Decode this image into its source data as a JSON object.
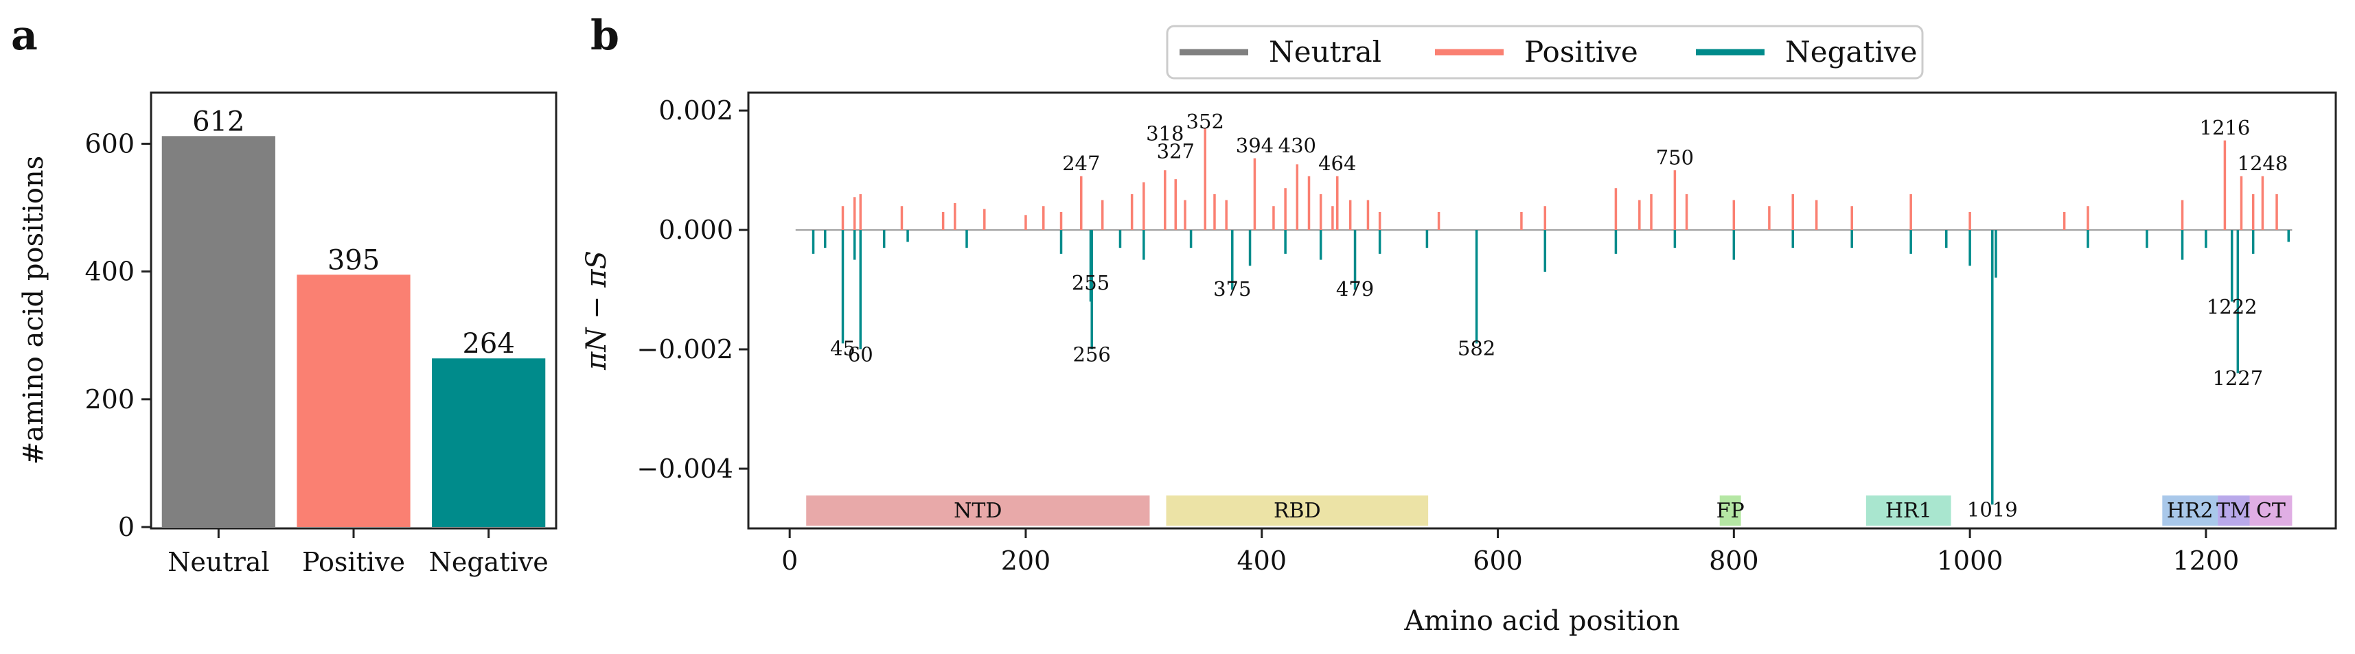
{
  "panel_a_letter": "a",
  "panel_b_letter": "b",
  "legend": [
    {
      "label": "Neutral",
      "color": "#808080"
    },
    {
      "label": "Positive",
      "color": "#fa8072"
    },
    {
      "label": "Negative",
      "color": "#008b8b"
    }
  ],
  "regions": [
    {
      "name": "NTD",
      "start": 14,
      "end": 305,
      "color": "#e8a9a9"
    },
    {
      "name": "RBD",
      "start": 319,
      "end": 541,
      "color": "#ece3a6"
    },
    {
      "name": "FP",
      "start": 788,
      "end": 806,
      "color": "#b5e7a4"
    },
    {
      "name": "HR1",
      "start": 912,
      "end": 984,
      "color": "#a9e6cf"
    },
    {
      "name": "HR2",
      "start": 1163,
      "end": 1210,
      "color": "#a9c8ea"
    },
    {
      "name": "TM",
      "start": 1210,
      "end": 1237,
      "color": "#b9a9ea"
    },
    {
      "name": "CT",
      "start": 1237,
      "end": 1273,
      "color": "#e0aee4"
    }
  ],
  "chart_data": [
    {
      "type": "bar",
      "panel": "a",
      "categories": [
        "Neutral",
        "Positive",
        "Negative"
      ],
      "values": [
        612,
        395,
        264
      ],
      "value_labels": [
        "612",
        "395",
        "264"
      ],
      "colors": [
        "#808080",
        "#fa8072",
        "#008b8b"
      ],
      "ylabel": "#amino acid positions",
      "xlabel": "",
      "ylim": [
        0,
        680
      ],
      "yticks": [
        0,
        200,
        400,
        600
      ],
      "ytick_labels": [
        "0",
        "200",
        "400",
        "600"
      ]
    },
    {
      "type": "bar",
      "panel": "b",
      "title": "",
      "xlabel": "Amino acid position",
      "ylabel": "πN − πS",
      "xlim": [
        -35,
        1310
      ],
      "ylim": [
        -0.005,
        0.0023
      ],
      "xticks": [
        0,
        200,
        400,
        600,
        800,
        1000,
        1200
      ],
      "xtick_labels": [
        "0",
        "200",
        "400",
        "600",
        "800",
        "1000",
        "1200"
      ],
      "yticks": [
        -0.004,
        -0.002,
        0,
        0.002
      ],
      "ytick_labels": [
        "−0.004",
        "−0.002",
        "0.000",
        "0.002"
      ],
      "series": [
        {
          "name": "Positive",
          "color": "#fa8072",
          "positions": [
            45,
            55,
            60,
            95,
            130,
            140,
            165,
            200,
            215,
            230,
            247,
            265,
            290,
            300,
            318,
            327,
            335,
            352,
            360,
            370,
            394,
            410,
            420,
            430,
            440,
            450,
            460,
            464,
            475,
            490,
            500,
            550,
            620,
            640,
            700,
            720,
            730,
            750,
            760,
            800,
            830,
            850,
            870,
            900,
            950,
            1000,
            1080,
            1100,
            1180,
            1216,
            1230,
            1240,
            1248,
            1260
          ],
          "values": [
            0.0004,
            0.00055,
            0.0006,
            0.0004,
            0.0003,
            0.00045,
            0.00035,
            0.00025,
            0.0004,
            0.0003,
            0.0009,
            0.0005,
            0.0006,
            0.0008,
            0.001,
            0.00085,
            0.0005,
            0.0017,
            0.0006,
            0.0005,
            0.0012,
            0.0004,
            0.0007,
            0.0011,
            0.0009,
            0.0006,
            0.0004,
            0.0009,
            0.0005,
            0.0005,
            0.0003,
            0.0003,
            0.0003,
            0.0004,
            0.0007,
            0.0005,
            0.0006,
            0.001,
            0.0006,
            0.0005,
            0.0004,
            0.0006,
            0.0005,
            0.0004,
            0.0006,
            0.0003,
            0.0003,
            0.0004,
            0.0005,
            0.0015,
            0.0009,
            0.0006,
            0.0009,
            0.0006
          ]
        },
        {
          "name": "Negative",
          "color": "#008b8b",
          "positions": [
            20,
            30,
            45,
            55,
            60,
            80,
            100,
            150,
            230,
            255,
            256,
            280,
            300,
            340,
            375,
            390,
            420,
            450,
            479,
            500,
            540,
            582,
            640,
            700,
            750,
            800,
            850,
            900,
            950,
            980,
            1000,
            1019,
            1022,
            1100,
            1150,
            1180,
            1200,
            1222,
            1227,
            1240,
            1270
          ],
          "values": [
            -0.0004,
            -0.0003,
            -0.0019,
            -0.0005,
            -0.002,
            -0.0003,
            -0.0002,
            -0.0003,
            -0.0004,
            -0.0012,
            -0.002,
            -0.0003,
            -0.0005,
            -0.0003,
            -0.001,
            -0.0006,
            -0.0004,
            -0.0005,
            -0.001,
            -0.0004,
            -0.0003,
            -0.0019,
            -0.0007,
            -0.0004,
            -0.0003,
            -0.0005,
            -0.0003,
            -0.0003,
            -0.0004,
            -0.0003,
            -0.0006,
            -0.0046,
            -0.0008,
            -0.0003,
            -0.0003,
            -0.0005,
            -0.0003,
            -0.0012,
            -0.0024,
            -0.0004,
            -0.0002
          ]
        }
      ],
      "annotations": [
        {
          "label": "45",
          "x": 45,
          "y": -0.0021
        },
        {
          "label": "60",
          "x": 60,
          "y": -0.0022
        },
        {
          "label": "247",
          "x": 247,
          "y": 0.001
        },
        {
          "label": "255",
          "x": 255,
          "y": -0.001
        },
        {
          "label": "256",
          "x": 256,
          "y": -0.0022
        },
        {
          "label": "318",
          "x": 318,
          "y": 0.0015
        },
        {
          "label": "327",
          "x": 327,
          "y": 0.0012
        },
        {
          "label": "352",
          "x": 352,
          "y": 0.0017
        },
        {
          "label": "375",
          "x": 375,
          "y": -0.0011
        },
        {
          "label": "394",
          "x": 394,
          "y": 0.0013
        },
        {
          "label": "430",
          "x": 430,
          "y": 0.0013
        },
        {
          "label": "464",
          "x": 464,
          "y": 0.001
        },
        {
          "label": "479",
          "x": 479,
          "y": -0.0011
        },
        {
          "label": "582",
          "x": 582,
          "y": -0.0021
        },
        {
          "label": "750",
          "x": 750,
          "y": 0.0011
        },
        {
          "label": "1019",
          "x": 1019,
          "y": -0.0048
        },
        {
          "label": "1216",
          "x": 1216,
          "y": 0.0016
        },
        {
          "label": "1222",
          "x": 1222,
          "y": -0.0014
        },
        {
          "label": "1227",
          "x": 1227,
          "y": -0.0026
        },
        {
          "label": "1248",
          "x": 1248,
          "y": 0.001
        }
      ]
    }
  ]
}
